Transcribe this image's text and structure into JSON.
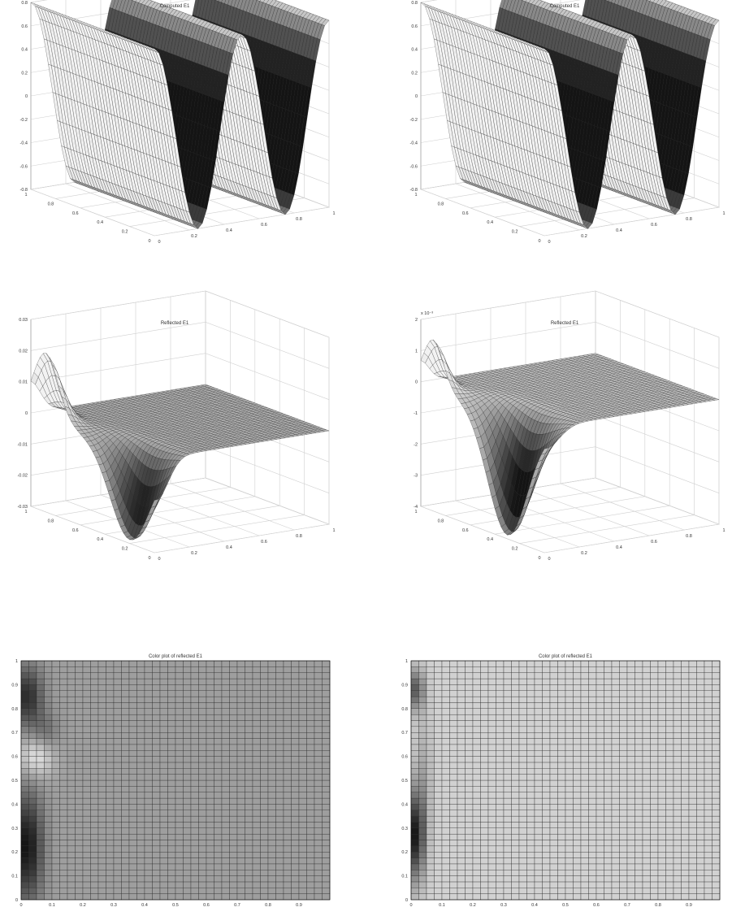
{
  "chart_data": [
    {
      "type": "surface",
      "title": "Computed E1",
      "x_ticks": [
        "0",
        "0.2",
        "0.4",
        "0.6",
        "0.8",
        "1"
      ],
      "y_ticks": [
        "0",
        "0.2",
        "0.4",
        "0.6",
        "0.8",
        "1"
      ],
      "z_ticks": [
        "-0.8",
        "-0.6",
        "-0.4",
        "-0.2",
        "0",
        "0.2",
        "0.4",
        "0.6",
        "0.8"
      ],
      "xlim": [
        0,
        1
      ],
      "ylim": [
        0,
        1
      ],
      "zlim": [
        -0.8,
        0.8
      ],
      "z_exponent_label": "",
      "grid": true,
      "colormap": "gray",
      "function": "standing wave, about 2 periods along x, amplitude 0.8"
    },
    {
      "type": "surface",
      "title": "Computed E1",
      "x_ticks": [
        "0",
        "0.2",
        "0.4",
        "0.6",
        "0.8",
        "1"
      ],
      "y_ticks": [
        "0",
        "0.2",
        "0.4",
        "0.6",
        "0.8",
        "1"
      ],
      "z_ticks": [
        "-0.8",
        "-0.6",
        "-0.4",
        "-0.2",
        "0",
        "0.2",
        "0.4",
        "0.6",
        "0.8"
      ],
      "xlim": [
        0,
        1
      ],
      "ylim": [
        0,
        1
      ],
      "zlim": [
        -0.8,
        0.8
      ],
      "z_exponent_label": "",
      "grid": true,
      "colormap": "gray",
      "function": "standing wave, about 2 periods along x, amplitude 0.8"
    },
    {
      "type": "surface",
      "title": "Reflected E1",
      "x_ticks": [
        "0",
        "0.2",
        "0.4",
        "0.6",
        "0.8",
        "1"
      ],
      "y_ticks": [
        "0",
        "0.2",
        "0.4",
        "0.6",
        "0.8",
        "1"
      ],
      "z_ticks": [
        "-0.03",
        "-0.02",
        "-0.01",
        "0",
        "0.01",
        "0.02",
        "0.03"
      ],
      "xlim": [
        0,
        1
      ],
      "ylim": [
        0,
        1
      ],
      "zlim": [
        -0.03,
        0.03
      ],
      "z_exponent_label": "",
      "grid": true,
      "colormap": "gray",
      "function": "localized near x=0, positive peak about 0.02 near y=0.9, negative trough about -0.03 near y=0.2, decays to 0 by x=0.3"
    },
    {
      "type": "surface",
      "title": "Reflected E1",
      "x_ticks": [
        "0",
        "0.2",
        "0.4",
        "0.6",
        "0.8",
        "1"
      ],
      "y_ticks": [
        "0",
        "0.2",
        "0.4",
        "0.6",
        "0.8",
        "1"
      ],
      "z_ticks": [
        "-4",
        "-3",
        "-2",
        "-1",
        "0",
        "1",
        "2"
      ],
      "xlim": [
        0,
        1
      ],
      "ylim": [
        0,
        1
      ],
      "zlim": [
        -4,
        2
      ],
      "z_exponent_label": "x 10⁻³",
      "grid": true,
      "colormap": "gray",
      "function": "localized near x=0, positive peak about 1.5e-3 near y=0.9, negative trough about -4e-3 near y=0.3, decays to 0 by x=0.3"
    },
    {
      "type": "heatmap",
      "title": "Color plot of reflected E1",
      "x_ticks": [
        "0",
        "0.1",
        "0.2",
        "0.3",
        "0.4",
        "0.5",
        "0.6",
        "0.7",
        "0.8",
        "0.9"
      ],
      "y_ticks": [
        "0",
        "0.1",
        "0.2",
        "0.3",
        "0.4",
        "0.5",
        "0.6",
        "0.7",
        "0.8",
        "0.9",
        "1"
      ],
      "xlim": [
        0,
        1
      ],
      "ylim": [
        0,
        1
      ],
      "grid_cells": 40,
      "colormap": "gray",
      "function": "dark band near x=0 for y 0.05-0.45 and 0.75-0.95, light band near y 0.6, uniform light gray elsewhere"
    },
    {
      "type": "heatmap",
      "title": "Color plot of reflected E1",
      "x_ticks": [
        "0",
        "0.1",
        "0.2",
        "0.3",
        "0.4",
        "0.5",
        "0.6",
        "0.7",
        "0.8",
        "0.9"
      ],
      "y_ticks": [
        "0",
        "0.1",
        "0.2",
        "0.3",
        "0.4",
        "0.5",
        "0.6",
        "0.7",
        "0.8",
        "0.9",
        "1"
      ],
      "xlim": [
        0,
        1
      ],
      "ylim": [
        0,
        1
      ],
      "grid_cells": 40,
      "colormap": "gray",
      "function": "narrow dark band near x=0 for y 0.1-0.45, smaller dark spot near y 0.9, uniform very light gray elsewhere"
    }
  ]
}
